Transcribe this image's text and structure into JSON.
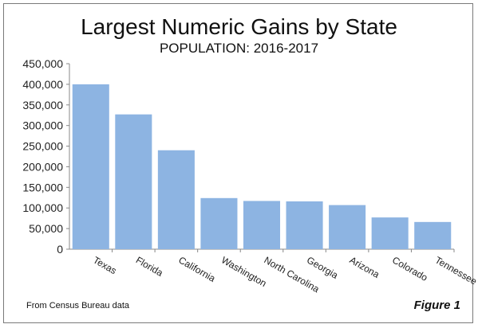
{
  "chart_data": {
    "type": "bar",
    "title": "Largest Numeric Gains by State",
    "subtitle": "POPULATION: 2016-2017",
    "categories": [
      "Texas",
      "Florida",
      "California",
      "Washington",
      "North Carolina",
      "Georgia",
      "Arizona",
      "Colorado",
      "Tennessee"
    ],
    "values": [
      400000,
      327000,
      240000,
      124000,
      117000,
      116000,
      107000,
      77000,
      66000
    ],
    "ylim": [
      0,
      450000
    ],
    "yticks": [
      "0",
      "50,000",
      "100,000",
      "150,000",
      "200,000",
      "250,000",
      "300,000",
      "350,000",
      "400,000",
      "450,000"
    ],
    "xlabel": "",
    "ylabel": "",
    "bar_color": "#8db4e2",
    "grid": false,
    "legend": "none"
  },
  "footer": {
    "source_note": "From Census Bureau data",
    "figure_label": "Figure 1"
  }
}
